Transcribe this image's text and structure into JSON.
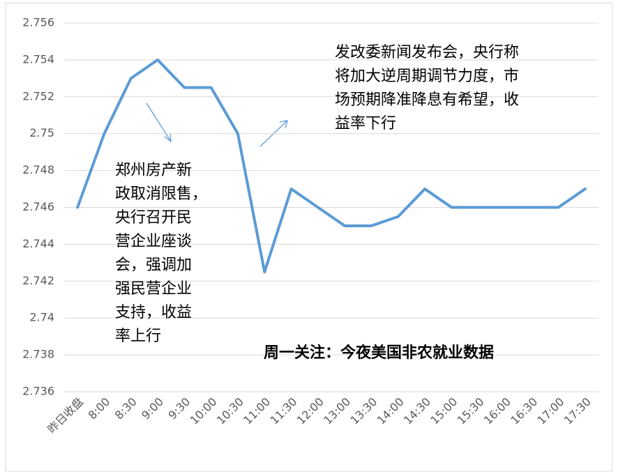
{
  "chart_data": {
    "type": "line",
    "categories": [
      "昨日收盘",
      "8:00",
      "8:30",
      "9:00",
      "9:30",
      "10:00",
      "10:30",
      "11:00",
      "11:30",
      "12:00",
      "13:00",
      "13:30",
      "14:00",
      "14:30",
      "15:00",
      "15:30",
      "16:00",
      "16:30",
      "17:00",
      "17:30"
    ],
    "values": [
      2.746,
      2.75,
      2.753,
      2.754,
      2.7525,
      2.7525,
      2.75,
      2.7425,
      2.747,
      2.746,
      2.745,
      2.745,
      2.7455,
      2.747,
      2.746,
      2.746,
      2.746,
      2.746,
      2.746,
      2.747
    ],
    "color": "#5b9bd5",
    "ylim": [
      2.736,
      2.756
    ],
    "yticks": [
      2.736,
      2.738,
      2.74,
      2.742,
      2.744,
      2.746,
      2.748,
      2.75,
      2.752,
      2.754,
      2.756
    ],
    "grid": true,
    "annotations": [
      {
        "lines": [
          "郑州房产新",
          "政取消限售，",
          "央行召开民",
          "营企业座谈",
          "会，强调加",
          "强民营企业",
          "支持，收益",
          "率上行"
        ],
        "bold": false
      },
      {
        "lines": [
          "发改委新闻发布会，央行称",
          "将加大逆周期调节力度，市",
          "场预期降准降息有希望，收",
          "益率下行"
        ],
        "bold": false
      },
      {
        "lines": [
          "周一关注：今夜美国非农就业数据"
        ],
        "bold": true
      }
    ]
  }
}
